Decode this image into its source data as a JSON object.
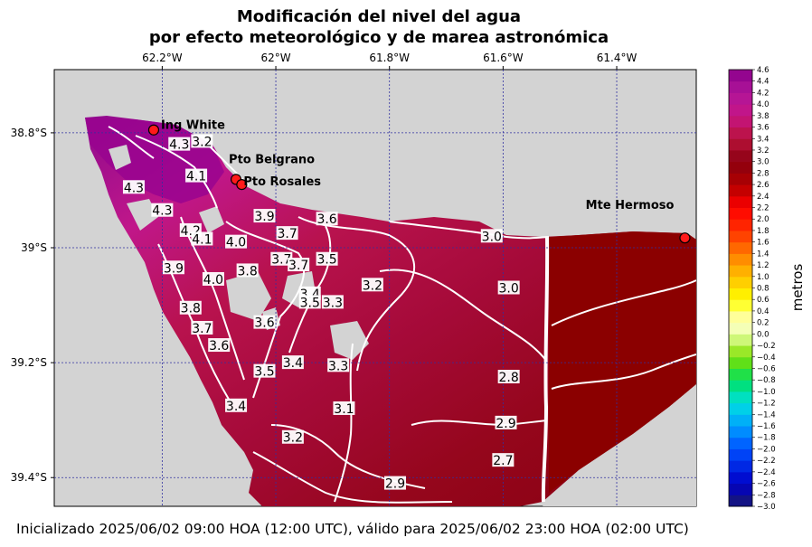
{
  "title_line1": "Modificación del nivel del agua",
  "title_line2": "por efecto meteorológico y de marea astronómica",
  "footer": "Inicializado 2025/06/02 09:00 HOA (12:00 UTC), válido para 2025/06/02 23:00 HOA (02:00 UTC)",
  "chart_data": {
    "type": "heatmap",
    "xlim": [
      -62.39,
      -61.26
    ],
    "ylim": [
      -39.45,
      -38.69
    ],
    "x_ticks": [
      {
        "value": -62.2,
        "label": "62.2°W"
      },
      {
        "value": -62.0,
        "label": "62°W"
      },
      {
        "value": -61.8,
        "label": "61.8°W"
      },
      {
        "value": -61.6,
        "label": "61.6°W"
      },
      {
        "value": -61.4,
        "label": "61.4°W"
      }
    ],
    "y_ticks": [
      {
        "value": -38.8,
        "label": "38.8°S"
      },
      {
        "value": -39.0,
        "label": "39°S"
      },
      {
        "value": -39.2,
        "label": "39.2°S"
      },
      {
        "value": -39.4,
        "label": "39.4°S"
      }
    ],
    "grid": true,
    "colorbar": {
      "label": "metros",
      "min": -3.0,
      "max": 4.6,
      "step": 0.2,
      "stops": [
        {
          "v": -3.0,
          "c": "#1a1a6e"
        },
        {
          "v": -2.6,
          "c": "#0000c8"
        },
        {
          "v": -2.0,
          "c": "#0050ff"
        },
        {
          "v": -1.6,
          "c": "#00a0ff"
        },
        {
          "v": -1.2,
          "c": "#00e0e0"
        },
        {
          "v": -0.8,
          "c": "#00e060"
        },
        {
          "v": -0.4,
          "c": "#80e000"
        },
        {
          "v": 0.0,
          "c": "#e8ffa0"
        },
        {
          "v": 0.2,
          "c": "#ffffcc"
        },
        {
          "v": 0.6,
          "c": "#ffff00"
        },
        {
          "v": 1.2,
          "c": "#ffa000"
        },
        {
          "v": 1.8,
          "c": "#ff3000"
        },
        {
          "v": 2.2,
          "c": "#ff0000"
        },
        {
          "v": 2.6,
          "c": "#b00000"
        },
        {
          "v": 3.0,
          "c": "#8b0010"
        },
        {
          "v": 3.4,
          "c": "#b8123a"
        },
        {
          "v": 3.8,
          "c": "#c71585"
        },
        {
          "v": 4.2,
          "c": "#b0159a"
        },
        {
          "v": 4.6,
          "c": "#8b008b"
        }
      ]
    },
    "places": [
      {
        "name": "Ing White",
        "lon": -62.215,
        "lat": -38.795
      },
      {
        "name": "Pto Belgrano",
        "lon": -62.07,
        "lat": -38.881
      },
      {
        "name": "Pto Rosales",
        "lon": -62.06,
        "lat": -38.89
      },
      {
        "name": "Mte Hermoso",
        "lon": -61.28,
        "lat": -38.983
      }
    ],
    "contour_labels": [
      {
        "text": "4.3",
        "lon": -62.17,
        "lat": -38.82
      },
      {
        "text": "3.2",
        "lon": -62.13,
        "lat": -38.815
      },
      {
        "text": "4.1",
        "lon": -62.14,
        "lat": -38.875
      },
      {
        "text": "4.3",
        "lon": -62.25,
        "lat": -38.895
      },
      {
        "text": "4.3",
        "lon": -62.2,
        "lat": -38.935
      },
      {
        "text": "4.2",
        "lon": -62.15,
        "lat": -38.97
      },
      {
        "text": "4.1",
        "lon": -62.13,
        "lat": -38.985
      },
      {
        "text": "4.0",
        "lon": -62.07,
        "lat": -38.99
      },
      {
        "text": "3.9",
        "lon": -62.02,
        "lat": -38.945
      },
      {
        "text": "3.7",
        "lon": -61.98,
        "lat": -38.975
      },
      {
        "text": "3.6",
        "lon": -61.91,
        "lat": -38.95
      },
      {
        "text": "3.7",
        "lon": -61.99,
        "lat": -39.02
      },
      {
        "text": "3.7",
        "lon": -61.96,
        "lat": -39.03
      },
      {
        "text": "3.5",
        "lon": -61.91,
        "lat": -39.02
      },
      {
        "text": "3.8",
        "lon": -62.05,
        "lat": -39.04
      },
      {
        "text": "3.9",
        "lon": -62.18,
        "lat": -39.035
      },
      {
        "text": "4.0",
        "lon": -62.11,
        "lat": -39.055
      },
      {
        "text": "3.4",
        "lon": -61.94,
        "lat": -39.08
      },
      {
        "text": "3.5",
        "lon": -61.94,
        "lat": -39.095
      },
      {
        "text": "3.3",
        "lon": -61.9,
        "lat": -39.095
      },
      {
        "text": "3.8",
        "lon": -62.15,
        "lat": -39.105
      },
      {
        "text": "3.6",
        "lon": -62.02,
        "lat": -39.13
      },
      {
        "text": "3.7",
        "lon": -62.13,
        "lat": -39.14
      },
      {
        "text": "3.6",
        "lon": -62.1,
        "lat": -39.17
      },
      {
        "text": "3.4",
        "lon": -61.97,
        "lat": -39.2
      },
      {
        "text": "3.3",
        "lon": -61.89,
        "lat": -39.205
      },
      {
        "text": "3.5",
        "lon": -62.02,
        "lat": -39.215
      },
      {
        "text": "3.4",
        "lon": -62.07,
        "lat": -39.275
      },
      {
        "text": "3.2",
        "lon": -61.83,
        "lat": -39.065
      },
      {
        "text": "3.0",
        "lon": -61.62,
        "lat": -38.98
      },
      {
        "text": "3.0",
        "lon": -61.59,
        "lat": -39.07
      },
      {
        "text": "3.1",
        "lon": -61.88,
        "lat": -39.28
      },
      {
        "text": "3.2",
        "lon": -61.97,
        "lat": -39.33
      },
      {
        "text": "2.8",
        "lon": -61.59,
        "lat": -39.225
      },
      {
        "text": "2.9",
        "lon": -61.595,
        "lat": -39.305
      },
      {
        "text": "2.7",
        "lon": -61.6,
        "lat": -39.37
      },
      {
        "text": "2.9",
        "lon": -61.79,
        "lat": -39.41
      }
    ]
  }
}
